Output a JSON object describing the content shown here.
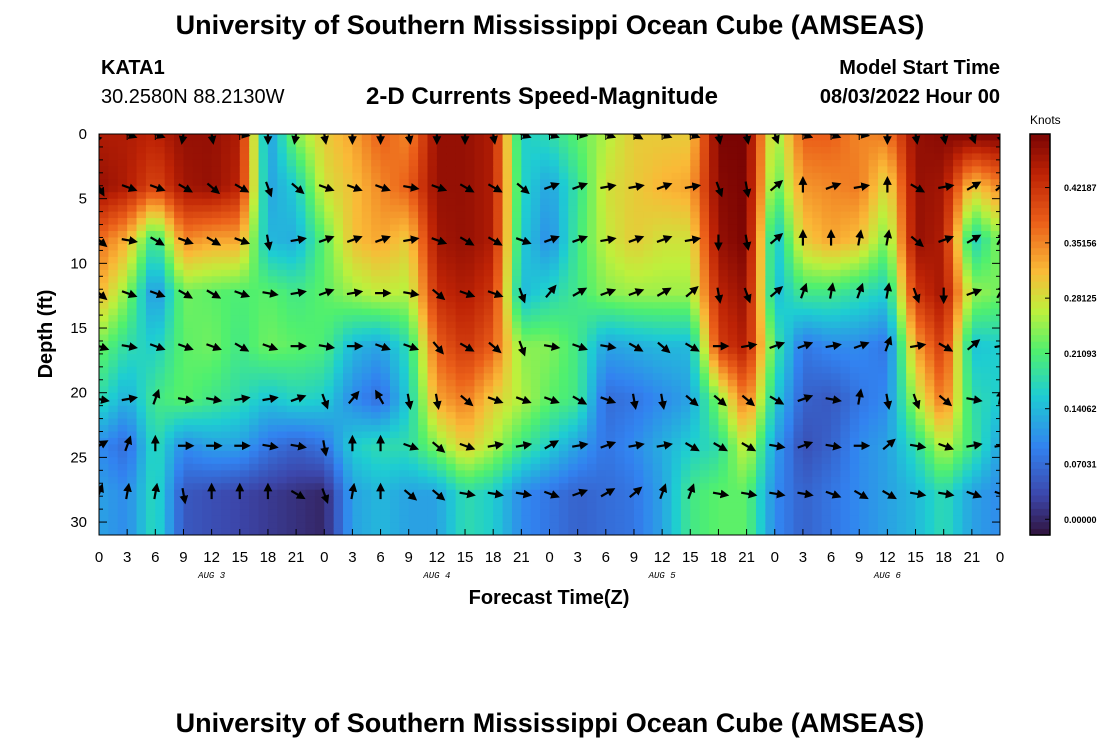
{
  "header": {
    "title": "University of Southern Mississippi Ocean Cube (AMSEAS)",
    "station": "KATA1",
    "coords": "30.2580N  88.2130W",
    "subtitle": "2-D Currents Speed-Magnitude",
    "start_label": "Model Start Time",
    "start_value": "08/03/2022 Hour 00"
  },
  "footer": {
    "title": "University of Southern Mississippi Ocean Cube (AMSEAS)"
  },
  "chart_data": {
    "type": "heatmap",
    "title": "2-D Currents Speed-Magnitude",
    "xlabel": "Forecast Time(Z)",
    "ylabel": "Depth (ft)",
    "x_range_hours": [
      0,
      96
    ],
    "y_range_ft": [
      0,
      31
    ],
    "x_tick_labels": [
      "0",
      "3",
      "6",
      "9",
      "12",
      "15",
      "18",
      "21",
      "0",
      "3",
      "6",
      "9",
      "12",
      "15",
      "18",
      "21",
      "0",
      "3",
      "6",
      "9",
      "12",
      "15",
      "18",
      "21",
      "0",
      "3",
      "6",
      "9",
      "12",
      "15",
      "18",
      "21",
      "0"
    ],
    "day_labels": [
      "AUG 3",
      "AUG 4",
      "AUG 5",
      "AUG 6"
    ],
    "y_ticks": [
      0,
      5,
      10,
      15,
      20,
      25,
      30
    ],
    "colorbar": {
      "units": "Knots",
      "tick_labels": [
        "0.42187",
        "0.35156",
        "0.28125",
        "0.21093",
        "0.14062",
        "0.07031",
        "0.00000"
      ],
      "tick_values": [
        0.42187,
        0.35156,
        0.28125,
        0.21093,
        0.14062,
        0.07031,
        0.0
      ],
      "range": [
        -0.02,
        0.49
      ]
    },
    "vector_times_hours": [
      0,
      3,
      6,
      9,
      12,
      15,
      18,
      21,
      24,
      27,
      30,
      33,
      36,
      39,
      42,
      45,
      48,
      51,
      54,
      57,
      60,
      63,
      66,
      69,
      72,
      75,
      78,
      81,
      84,
      87,
      90,
      93,
      96
    ],
    "vector_depths_ft": [
      0,
      4.1,
      8.2,
      12.3,
      16.4,
      20.5,
      24.1,
      27.8
    ],
    "speed_knots": [
      [
        0.45,
        0.45,
        0.44,
        0.47,
        0.47,
        0.45,
        0.11,
        0.24,
        0.3,
        0.33,
        0.38,
        0.35,
        0.47,
        0.47,
        0.45,
        0.16,
        0.18,
        0.22,
        0.26,
        0.3,
        0.3,
        0.3,
        0.49,
        0.49,
        0.24,
        0.38,
        0.38,
        0.35,
        0.36,
        0.47,
        0.48,
        0.49,
        0.49
      ],
      [
        0.47,
        0.45,
        0.4,
        0.46,
        0.47,
        0.44,
        0.12,
        0.16,
        0.28,
        0.31,
        0.35,
        0.38,
        0.47,
        0.47,
        0.45,
        0.17,
        0.12,
        0.19,
        0.28,
        0.3,
        0.32,
        0.33,
        0.48,
        0.49,
        0.21,
        0.34,
        0.35,
        0.36,
        0.28,
        0.47,
        0.46,
        0.3,
        0.35
      ],
      [
        0.37,
        0.32,
        0.18,
        0.35,
        0.33,
        0.33,
        0.14,
        0.13,
        0.22,
        0.31,
        0.33,
        0.3,
        0.46,
        0.47,
        0.45,
        0.16,
        0.1,
        0.2,
        0.27,
        0.3,
        0.28,
        0.28,
        0.47,
        0.49,
        0.14,
        0.3,
        0.33,
        0.31,
        0.23,
        0.47,
        0.45,
        0.16,
        0.24
      ],
      [
        0.32,
        0.24,
        0.1,
        0.23,
        0.22,
        0.21,
        0.22,
        0.2,
        0.22,
        0.25,
        0.27,
        0.26,
        0.43,
        0.45,
        0.42,
        0.14,
        0.17,
        0.2,
        0.24,
        0.25,
        0.25,
        0.25,
        0.44,
        0.47,
        0.14,
        0.2,
        0.2,
        0.18,
        0.16,
        0.42,
        0.46,
        0.25,
        0.23
      ],
      [
        0.23,
        0.18,
        0.16,
        0.22,
        0.23,
        0.2,
        0.23,
        0.22,
        0.21,
        0.14,
        0.12,
        0.18,
        0.38,
        0.42,
        0.38,
        0.24,
        0.24,
        0.2,
        0.12,
        0.13,
        0.14,
        0.14,
        0.41,
        0.45,
        0.2,
        0.08,
        0.1,
        0.1,
        0.08,
        0.33,
        0.42,
        0.15,
        0.16
      ],
      [
        0.18,
        0.13,
        0.2,
        0.22,
        0.2,
        0.18,
        0.15,
        0.17,
        0.16,
        0.1,
        0.07,
        0.16,
        0.33,
        0.36,
        0.3,
        0.26,
        0.22,
        0.2,
        0.07,
        0.08,
        0.1,
        0.12,
        0.24,
        0.37,
        0.16,
        0.06,
        0.05,
        0.08,
        0.1,
        0.26,
        0.37,
        0.18,
        0.16
      ],
      [
        0.1,
        0.07,
        0.18,
        0.1,
        0.12,
        0.12,
        0.08,
        0.06,
        0.08,
        0.16,
        0.18,
        0.18,
        0.24,
        0.3,
        0.26,
        0.2,
        0.16,
        0.12,
        0.08,
        0.1,
        0.13,
        0.16,
        0.18,
        0.28,
        0.12,
        0.04,
        0.06,
        0.1,
        0.12,
        0.18,
        0.27,
        0.2,
        0.12
      ],
      [
        0.12,
        0.1,
        0.18,
        0.05,
        0.04,
        0.03,
        0.02,
        0.01,
        0.0,
        0.12,
        0.14,
        0.12,
        0.12,
        0.18,
        0.16,
        0.1,
        0.08,
        0.06,
        0.07,
        0.08,
        0.12,
        0.2,
        0.22,
        0.22,
        0.1,
        0.06,
        0.08,
        0.1,
        0.12,
        0.14,
        0.18,
        0.12,
        0.1
      ]
    ],
    "direction_deg_ccw_from_east": [
      [
        -110,
        -20,
        -20,
        -100,
        -80,
        -10,
        -90,
        -100,
        -80,
        -90,
        -90,
        -80,
        -90,
        -90,
        -80,
        -20,
        -20,
        -10,
        -20,
        -30,
        -20,
        -20,
        -80,
        -80,
        -70,
        -20,
        -20,
        -10,
        -90,
        -80,
        -80,
        -70,
        -70
      ],
      [
        -60,
        -20,
        -20,
        -30,
        -40,
        -30,
        -70,
        -40,
        -20,
        -20,
        -20,
        -10,
        -20,
        -30,
        -30,
        -40,
        20,
        20,
        10,
        10,
        20,
        10,
        -70,
        -80,
        40,
        90,
        20,
        10,
        90,
        -30,
        10,
        30,
        40
      ],
      [
        -40,
        -10,
        -30,
        -20,
        -30,
        -20,
        -80,
        10,
        20,
        20,
        20,
        10,
        -20,
        -30,
        -30,
        -20,
        20,
        20,
        10,
        20,
        20,
        10,
        -90,
        -80,
        40,
        90,
        90,
        80,
        80,
        -40,
        20,
        30,
        60
      ],
      [
        -40,
        -20,
        -20,
        -30,
        -30,
        -20,
        -10,
        10,
        20,
        10,
        0,
        -10,
        -40,
        -20,
        -20,
        -70,
        50,
        30,
        20,
        20,
        30,
        40,
        -80,
        -70,
        40,
        70,
        80,
        70,
        80,
        -70,
        -90,
        20,
        60
      ],
      [
        -20,
        -10,
        -20,
        -20,
        -20,
        -30,
        -20,
        0,
        -10,
        0,
        -20,
        -20,
        -50,
        -30,
        -40,
        -70,
        -10,
        -20,
        -10,
        -30,
        -40,
        -30,
        0,
        10,
        20,
        20,
        10,
        20,
        70,
        10,
        -30,
        40,
        10
      ],
      [
        -10,
        10,
        70,
        -10,
        -10,
        10,
        10,
        20,
        -70,
        50,
        120,
        -80,
        -80,
        -40,
        -20,
        -20,
        -20,
        -30,
        -20,
        -80,
        -80,
        -40,
        -40,
        -40,
        -30,
        20,
        -10,
        80,
        -80,
        -70,
        -40,
        -10,
        80
      ],
      [
        30,
        70,
        90,
        0,
        0,
        0,
        -10,
        -10,
        -80,
        90,
        90,
        -20,
        -40,
        -20,
        10,
        10,
        30,
        10,
        20,
        10,
        10,
        -30,
        -30,
        -30,
        -10,
        20,
        -10,
        0,
        40,
        -10,
        -20,
        10,
        10
      ],
      [
        70,
        80,
        80,
        -80,
        90,
        90,
        90,
        -30,
        -70,
        80,
        90,
        -40,
        -40,
        -10,
        -10,
        -10,
        -20,
        20,
        30,
        40,
        70,
        70,
        -10,
        -10,
        -10,
        -10,
        -20,
        -30,
        -30,
        -10,
        -10,
        -20,
        -20
      ]
    ]
  }
}
